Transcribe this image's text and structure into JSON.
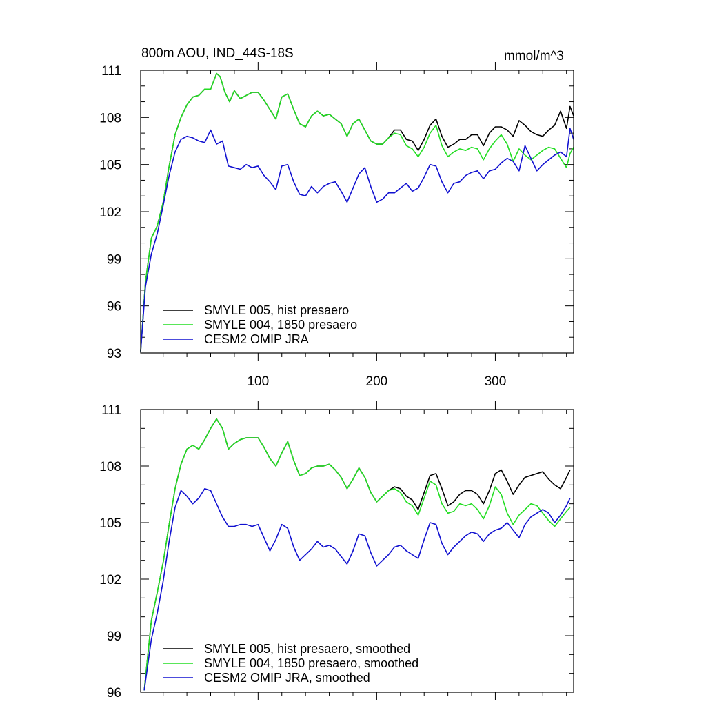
{
  "colors": {
    "hist": "#000000",
    "y1850": "#22dd22",
    "jra": "#1010d0"
  },
  "chart_data": [
    {
      "type": "line",
      "title": "800m AOU, IND_44S-18S",
      "units": "mmol/m^3",
      "xlim": [
        1,
        366
      ],
      "ylim": [
        93,
        111
      ],
      "yticks": [
        93,
        96,
        99,
        102,
        105,
        108,
        111
      ],
      "ytick_labels": [
        "93",
        "96",
        "99",
        "102",
        "105",
        "108",
        "111"
      ],
      "xticks": [
        100,
        200,
        300
      ],
      "xtick_labels": [
        "100",
        "200",
        "300"
      ],
      "legend": "bottom-left",
      "series": [
        {
          "name": "SMYLE 005, hist presaero",
          "color": "#000000",
          "x": [
            1,
            5,
            10,
            15,
            20,
            25,
            30,
            35,
            40,
            45,
            50,
            55,
            60,
            65,
            68,
            72,
            76,
            80,
            85,
            90,
            95,
            100,
            105,
            110,
            115,
            120,
            125,
            130,
            135,
            140,
            145,
            150,
            155,
            160,
            165,
            170,
            175,
            180,
            185,
            190,
            195,
            200,
            205,
            210,
            215,
            220,
            225,
            230,
            235,
            240,
            245,
            250,
            255,
            260,
            265,
            270,
            275,
            280,
            285,
            290,
            295,
            300,
            305,
            310,
            315,
            320,
            325,
            330,
            335,
            340,
            345,
            350,
            355,
            360,
            363,
            366
          ],
          "y": [
            93.1,
            97.5,
            100.3,
            101.1,
            102.6,
            104.9,
            106.9,
            108.0,
            108.8,
            109.3,
            109.4,
            109.8,
            109.8,
            110.8,
            110.6,
            109.6,
            109.0,
            109.7,
            109.2,
            109.4,
            109.6,
            109.6,
            109.1,
            108.5,
            107.9,
            109.3,
            109.5,
            108.5,
            107.6,
            107.4,
            108.1,
            108.4,
            108.1,
            108.2,
            107.9,
            107.6,
            106.8,
            107.6,
            107.9,
            107.2,
            106.5,
            106.3,
            106.3,
            106.7,
            107.2,
            107.2,
            106.6,
            106.5,
            105.9,
            106.6,
            107.5,
            107.9,
            106.8,
            106.1,
            106.3,
            106.6,
            106.6,
            106.9,
            106.9,
            106.2,
            107.0,
            107.4,
            107.4,
            107.2,
            106.8,
            107.8,
            107.5,
            107.1,
            106.9,
            106.8,
            107.2,
            107.5,
            108.4,
            107.3,
            108.7,
            108.1
          ]
        },
        {
          "name": "SMYLE 004, 1850 presaero",
          "color": "#22dd22",
          "x": [
            1,
            5,
            10,
            15,
            20,
            25,
            30,
            35,
            40,
            45,
            50,
            55,
            60,
            65,
            68,
            72,
            76,
            80,
            85,
            90,
            95,
            100,
            105,
            110,
            115,
            120,
            125,
            130,
            135,
            140,
            145,
            150,
            155,
            160,
            165,
            170,
            175,
            180,
            185,
            190,
            195,
            200,
            205,
            210,
            215,
            220,
            225,
            230,
            235,
            240,
            245,
            250,
            255,
            260,
            265,
            270,
            275,
            280,
            285,
            290,
            295,
            300,
            305,
            310,
            315,
            320,
            325,
            330,
            335,
            340,
            345,
            350,
            355,
            360,
            363,
            366
          ],
          "y": [
            93.1,
            97.5,
            100.3,
            101.1,
            102.6,
            104.9,
            106.9,
            108.0,
            108.8,
            109.3,
            109.4,
            109.8,
            109.8,
            110.8,
            110.6,
            109.6,
            109.0,
            109.7,
            109.2,
            109.4,
            109.6,
            109.6,
            109.1,
            108.5,
            107.9,
            109.3,
            109.5,
            108.5,
            107.6,
            107.4,
            108.1,
            108.4,
            108.1,
            108.2,
            107.9,
            107.6,
            106.8,
            107.6,
            107.9,
            107.2,
            106.5,
            106.3,
            106.3,
            106.7,
            107.0,
            106.9,
            106.2,
            106.0,
            105.5,
            106.1,
            107.0,
            107.5,
            106.2,
            105.5,
            105.8,
            106.0,
            105.9,
            106.1,
            106.0,
            105.3,
            106.0,
            106.5,
            106.9,
            106.3,
            105.2,
            106.0,
            105.6,
            105.3,
            105.6,
            105.9,
            106.1,
            106.0,
            105.4,
            104.8,
            105.7,
            106.1
          ]
        },
        {
          "name": "CESM2 OMIP JRA",
          "color": "#1010d0",
          "x": [
            1,
            5,
            10,
            15,
            20,
            25,
            30,
            35,
            40,
            45,
            50,
            55,
            60,
            65,
            70,
            75,
            80,
            85,
            90,
            95,
            100,
            105,
            110,
            115,
            120,
            125,
            130,
            135,
            140,
            145,
            150,
            155,
            160,
            165,
            170,
            175,
            180,
            185,
            190,
            195,
            200,
            205,
            210,
            215,
            220,
            225,
            230,
            235,
            240,
            245,
            250,
            255,
            260,
            265,
            270,
            275,
            280,
            285,
            290,
            295,
            300,
            305,
            310,
            315,
            320,
            325,
            330,
            335,
            340,
            345,
            350,
            355,
            360,
            363,
            366
          ],
          "y": [
            93.1,
            97.2,
            99.3,
            100.6,
            102.4,
            104.3,
            105.8,
            106.6,
            106.8,
            106.7,
            106.5,
            106.4,
            107.2,
            106.3,
            106.5,
            104.9,
            104.8,
            104.7,
            105.0,
            104.8,
            104.9,
            104.3,
            103.9,
            103.4,
            104.9,
            105.0,
            103.9,
            103.1,
            103.0,
            103.6,
            103.2,
            103.6,
            103.8,
            103.9,
            103.3,
            102.6,
            103.5,
            104.4,
            104.8,
            103.6,
            102.6,
            102.8,
            103.2,
            103.2,
            103.5,
            103.8,
            103.3,
            103.5,
            104.2,
            105.0,
            104.9,
            103.9,
            103.2,
            103.8,
            103.9,
            104.3,
            104.5,
            104.6,
            104.1,
            104.6,
            104.7,
            105.1,
            105.4,
            105.2,
            104.6,
            106.2,
            105.4,
            104.6,
            105.0,
            105.3,
            105.6,
            105.8,
            105.5,
            107.3,
            106.6
          ]
        }
      ]
    },
    {
      "type": "line",
      "title": "",
      "xlim": [
        1,
        366
      ],
      "ylim": [
        96,
        111
      ],
      "yticks": [
        96,
        99,
        102,
        105,
        108,
        111
      ],
      "ytick_labels": [
        "96",
        "99",
        "102",
        "105",
        "108",
        "111"
      ],
      "xticks": [
        100,
        200,
        300
      ],
      "xtick_labels": [],
      "legend": "bottom-left",
      "series": [
        {
          "name": "SMYLE 005, hist presaero, smoothed",
          "color": "#000000",
          "x": [
            4,
            10,
            15,
            20,
            25,
            30,
            35,
            40,
            45,
            50,
            55,
            60,
            65,
            70,
            75,
            80,
            85,
            90,
            95,
            100,
            105,
            110,
            115,
            120,
            125,
            130,
            135,
            140,
            145,
            150,
            155,
            160,
            165,
            170,
            175,
            180,
            185,
            190,
            195,
            200,
            205,
            210,
            215,
            220,
            225,
            230,
            235,
            240,
            245,
            250,
            255,
            260,
            265,
            270,
            275,
            280,
            285,
            290,
            295,
            300,
            305,
            310,
            315,
            320,
            325,
            330,
            335,
            340,
            345,
            350,
            355,
            360,
            363
          ],
          "y": [
            96.1,
            99.8,
            101.3,
            102.9,
            104.9,
            106.8,
            108.1,
            108.9,
            109.1,
            108.9,
            109.4,
            110.0,
            110.5,
            110.0,
            108.9,
            109.2,
            109.4,
            109.5,
            109.5,
            109.5,
            109.0,
            108.4,
            108.0,
            108.7,
            109.3,
            108.3,
            107.5,
            107.6,
            107.9,
            108.0,
            108.0,
            108.1,
            107.8,
            107.4,
            106.8,
            107.3,
            107.9,
            107.4,
            106.6,
            106.1,
            106.4,
            106.7,
            106.9,
            106.8,
            106.4,
            106.2,
            105.7,
            106.6,
            107.5,
            107.6,
            106.8,
            105.9,
            106.1,
            106.5,
            106.7,
            106.7,
            106.5,
            106.0,
            106.7,
            107.6,
            107.8,
            107.2,
            106.5,
            107.0,
            107.4,
            107.5,
            107.6,
            107.7,
            107.3,
            107.0,
            106.8,
            107.4,
            107.8
          ]
        },
        {
          "name": "SMYLE 004, 1850 presaero, smoothed",
          "color": "#22dd22",
          "x": [
            4,
            10,
            15,
            20,
            25,
            30,
            35,
            40,
            45,
            50,
            55,
            60,
            65,
            70,
            75,
            80,
            85,
            90,
            95,
            100,
            105,
            110,
            115,
            120,
            125,
            130,
            135,
            140,
            145,
            150,
            155,
            160,
            165,
            170,
            175,
            180,
            185,
            190,
            195,
            200,
            205,
            210,
            215,
            220,
            225,
            230,
            235,
            240,
            245,
            250,
            255,
            260,
            265,
            270,
            275,
            280,
            285,
            290,
            295,
            300,
            305,
            310,
            315,
            320,
            325,
            330,
            335,
            340,
            345,
            350,
            355,
            360,
            363
          ],
          "y": [
            96.1,
            99.8,
            101.3,
            102.9,
            104.9,
            106.8,
            108.1,
            108.9,
            109.1,
            108.9,
            109.4,
            110.0,
            110.5,
            110.0,
            108.9,
            109.2,
            109.4,
            109.5,
            109.5,
            109.5,
            109.0,
            108.4,
            108.0,
            108.7,
            109.3,
            108.3,
            107.5,
            107.6,
            107.9,
            108.0,
            108.0,
            108.1,
            107.8,
            107.4,
            106.8,
            107.3,
            107.9,
            107.4,
            106.6,
            106.1,
            106.4,
            106.7,
            106.8,
            106.6,
            106.1,
            105.9,
            105.4,
            106.3,
            107.2,
            107.0,
            106.0,
            105.5,
            105.6,
            106.0,
            105.9,
            106.0,
            105.7,
            105.2,
            105.9,
            106.9,
            106.5,
            105.5,
            104.9,
            105.4,
            105.7,
            106.0,
            105.9,
            105.5,
            105.1,
            104.8,
            105.2,
            105.6,
            105.8
          ]
        },
        {
          "name": "CESM2 OMIP JRA, smoothed",
          "color": "#1010d0",
          "x": [
            4,
            10,
            15,
            20,
            25,
            30,
            35,
            40,
            45,
            50,
            55,
            60,
            65,
            70,
            75,
            80,
            85,
            90,
            95,
            100,
            105,
            110,
            115,
            120,
            125,
            130,
            135,
            140,
            145,
            150,
            155,
            160,
            165,
            170,
            175,
            180,
            185,
            190,
            195,
            200,
            205,
            210,
            215,
            220,
            225,
            230,
            235,
            240,
            245,
            250,
            255,
            260,
            265,
            270,
            275,
            280,
            285,
            290,
            295,
            300,
            305,
            310,
            315,
            320,
            325,
            330,
            335,
            340,
            345,
            350,
            355,
            360,
            363
          ],
          "y": [
            96.1,
            98.8,
            100.2,
            101.9,
            104.0,
            105.8,
            106.7,
            106.4,
            106.0,
            106.3,
            106.8,
            106.7,
            106.0,
            105.3,
            104.8,
            104.8,
            104.9,
            104.9,
            104.8,
            104.9,
            104.2,
            103.5,
            104.1,
            104.9,
            104.7,
            103.7,
            103.0,
            103.3,
            103.6,
            104.0,
            103.7,
            103.8,
            103.6,
            103.2,
            102.8,
            103.5,
            104.4,
            104.3,
            103.4,
            102.7,
            103.0,
            103.3,
            103.7,
            103.8,
            103.5,
            103.3,
            103.1,
            104.1,
            105.0,
            104.9,
            103.9,
            103.3,
            103.7,
            104.0,
            104.3,
            104.5,
            104.4,
            104.0,
            104.4,
            104.6,
            104.7,
            105.0,
            104.6,
            104.2,
            104.9,
            105.3,
            105.5,
            105.7,
            105.5,
            105.0,
            105.4,
            105.9,
            106.3
          ]
        }
      ]
    }
  ]
}
